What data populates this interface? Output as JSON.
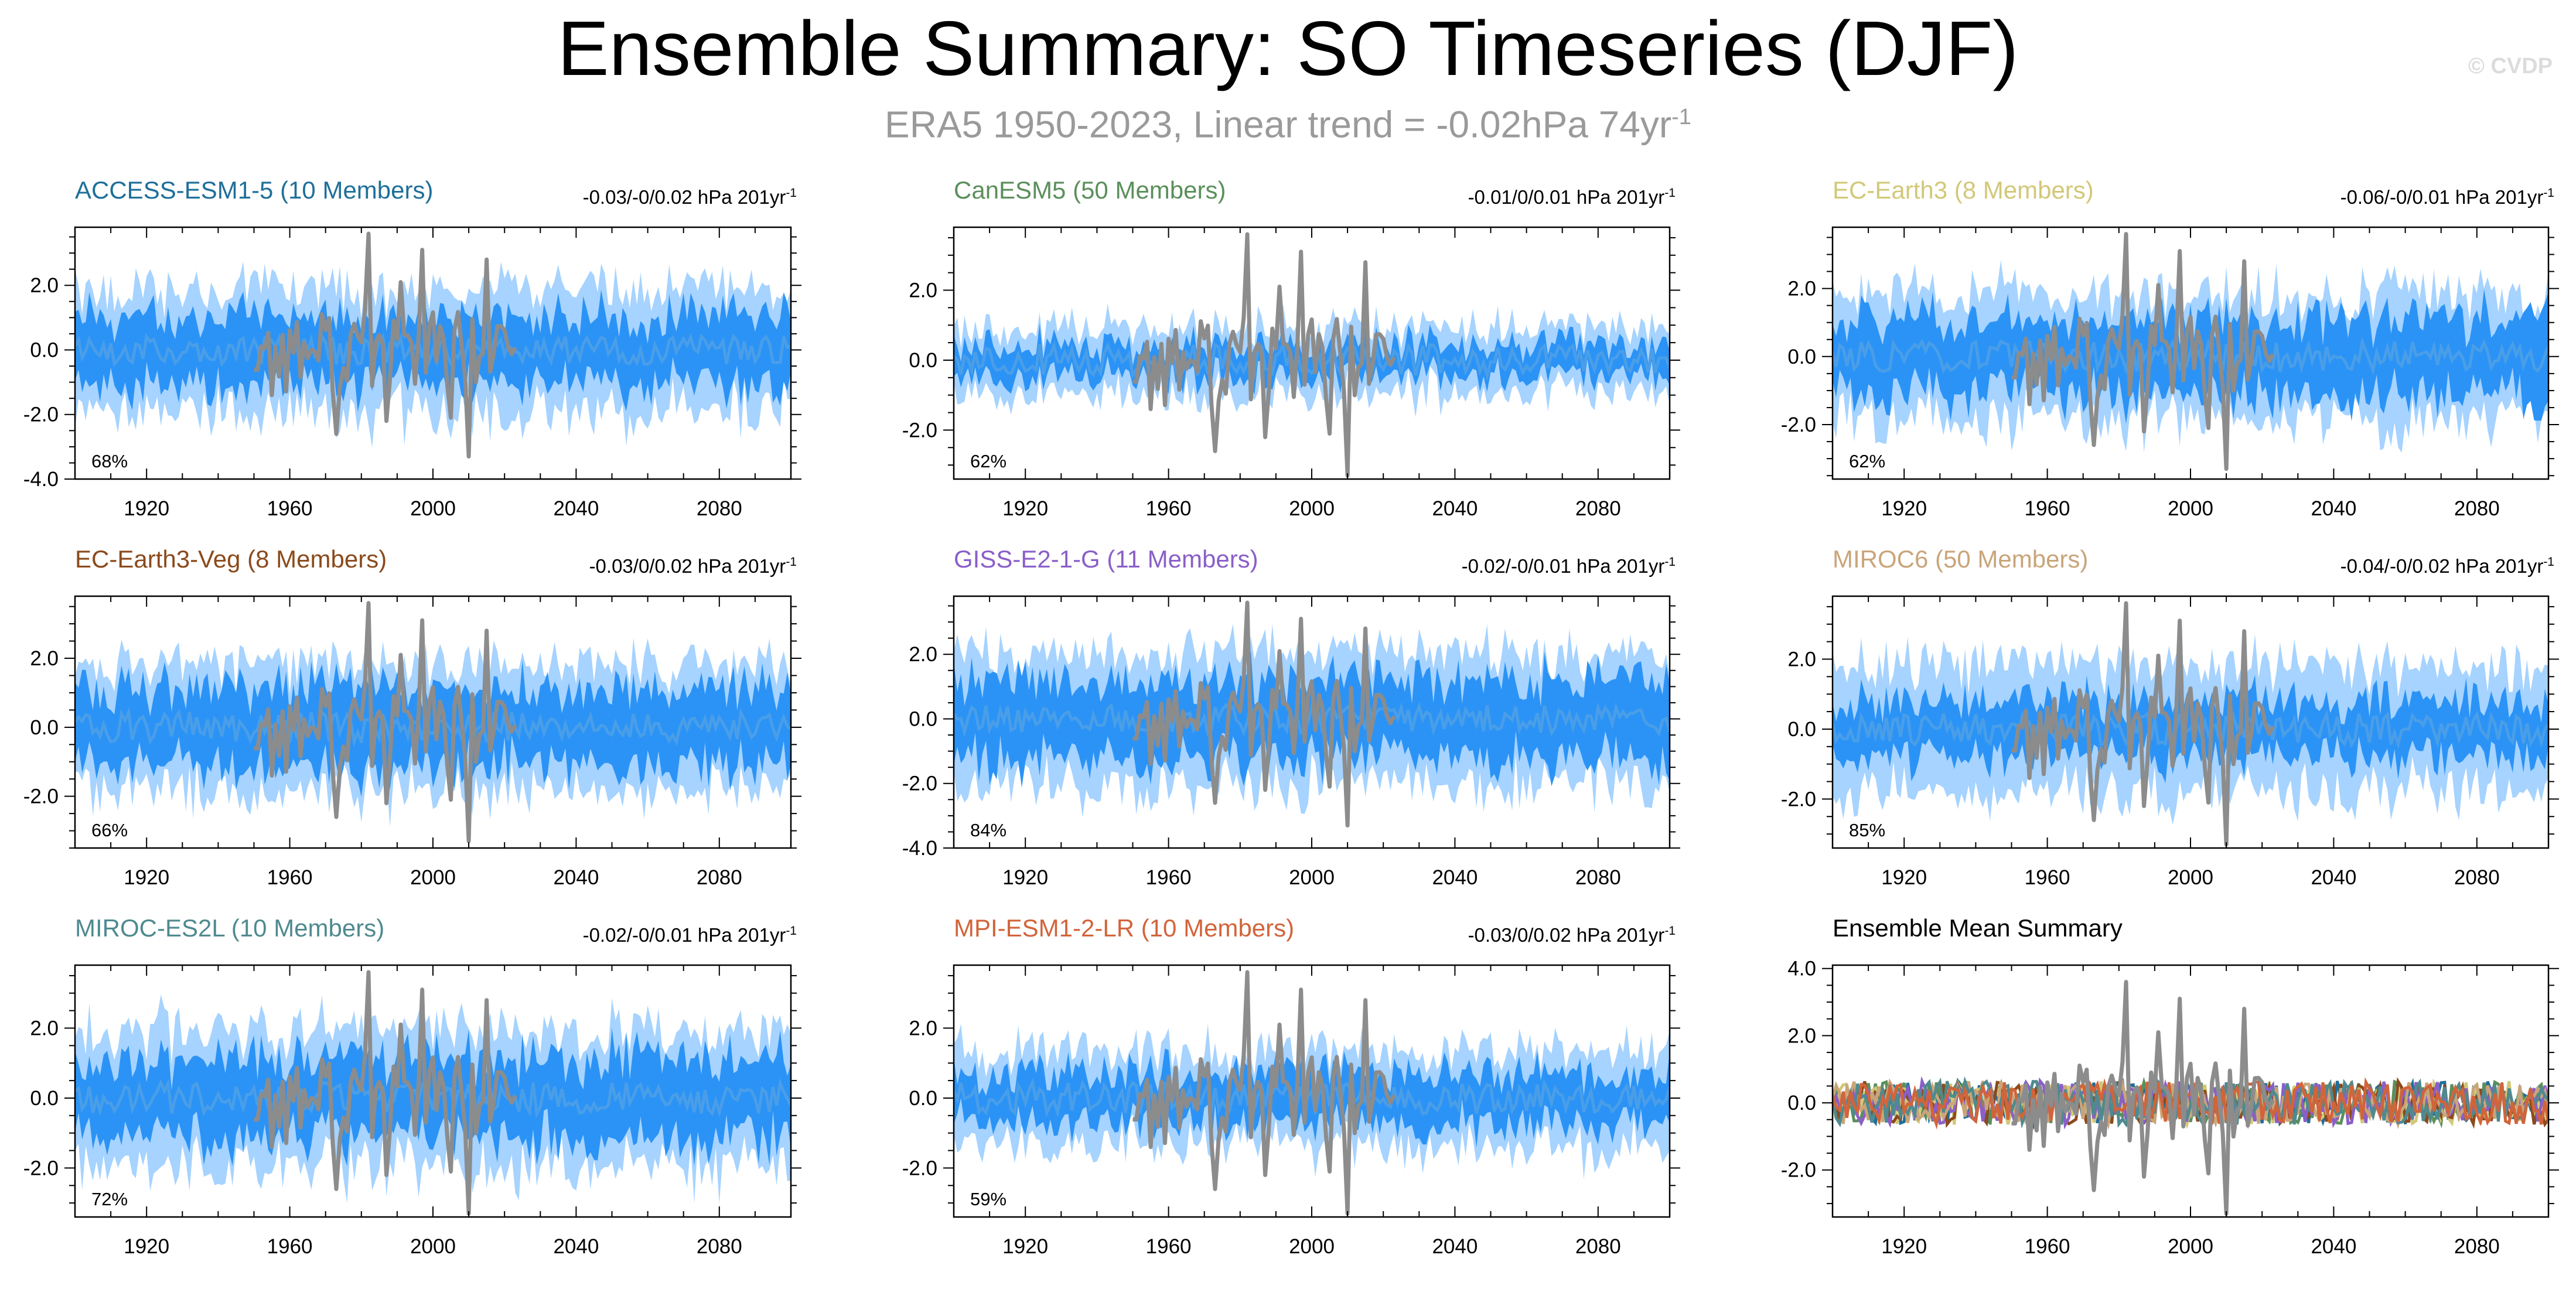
{
  "page": {
    "title": "Ensemble Summary: SO Timeseries (DJF)",
    "subtitle_main": "ERA5 1950-2023, Linear trend = -0.02hPa 74yr",
    "subtitle_sup": "-1",
    "copyright": "© CVDP"
  },
  "colors": {
    "spread_outer": "#a6d3ff",
    "spread_inner": "#2b93f6",
    "ensemble_mean": "#4a9ee8",
    "observations": "#8c8c8c"
  },
  "chart_data": [
    {
      "type": "area",
      "title": "ACCESS-ESM1-5 (10 Members)",
      "title_color": "#1f6f9a",
      "trend_label": "-0.03/-0/0.02 hPa 201yr",
      "trend_sup": "-1",
      "percent_label": "68%",
      "xlim": [
        1900,
        2100
      ],
      "x_ticks": [
        "1920",
        "1960",
        "2000",
        "2040",
        "2080"
      ],
      "ylim": [
        -4.0,
        3.8
      ],
      "y_ticks": [
        "2.0",
        "0.0",
        "-2.0",
        "-4.0"
      ],
      "y_tick_values": [
        2.0,
        0.0,
        -2.0,
        -4.0
      ],
      "x_range": [
        1900,
        2100
      ],
      "outer_amplitude": 2.2,
      "inner_amplitude": 1.3
    },
    {
      "type": "area",
      "title": "CanESM5 (50 Members)",
      "title_color": "#5b8f5b",
      "trend_label": "-0.01/0/0.01 hPa 201yr",
      "trend_sup": "-1",
      "percent_label": "62%",
      "xlim": [
        1900,
        2100
      ],
      "x_ticks": [
        "1920",
        "1960",
        "2000",
        "2040",
        "2080"
      ],
      "ylim": [
        -3.4,
        3.8
      ],
      "y_ticks": [
        "2.0",
        "0.0",
        "-2.0"
      ],
      "y_tick_values": [
        2.0,
        0.0,
        -2.0
      ],
      "x_range": [
        1900,
        2100
      ],
      "outer_amplitude": 1.1,
      "inner_amplitude": 0.55
    },
    {
      "type": "area",
      "title": "EC-Earth3 (8 Members)",
      "title_color": "#d2c878",
      "trend_label": "-0.06/-0/0.01 hPa 201yr",
      "trend_sup": "-1",
      "percent_label": "62%",
      "xlim": [
        1900,
        2100
      ],
      "x_ticks": [
        "1920",
        "1960",
        "2000",
        "2040",
        "2080"
      ],
      "ylim": [
        -3.6,
        3.8
      ],
      "y_ticks": [
        "2.0",
        "0.0",
        "-2.0"
      ],
      "y_tick_values": [
        2.0,
        0.0,
        -2.0
      ],
      "x_range": [
        1900,
        2100
      ],
      "outer_amplitude": 2.2,
      "inner_amplitude": 1.4
    },
    {
      "type": "area",
      "title": "EC-Earth3-Veg (8 Members)",
      "title_color": "#8b4a1c",
      "trend_label": "-0.03/0/0.02 hPa 201yr",
      "trend_sup": "-1",
      "percent_label": "66%",
      "xlim": [
        1900,
        2100
      ],
      "x_ticks": [
        "1920",
        "1960",
        "2000",
        "2040",
        "2080"
      ],
      "ylim": [
        -3.5,
        3.8
      ],
      "y_ticks": [
        "2.0",
        "0.0",
        "-2.0"
      ],
      "y_tick_values": [
        2.0,
        0.0,
        -2.0
      ],
      "x_range": [
        1900,
        2100
      ],
      "outer_amplitude": 2.1,
      "inner_amplitude": 1.4
    },
    {
      "type": "area",
      "title": "GISS-E2-1-G (11 Members)",
      "title_color": "#8a5fc8",
      "trend_label": "-0.02/-0/0.01 hPa 201yr",
      "trend_sup": "-1",
      "percent_label": "84%",
      "xlim": [
        1900,
        2100
      ],
      "x_ticks": [
        "1920",
        "1960",
        "2000",
        "2040",
        "2080"
      ],
      "ylim": [
        -4.0,
        3.8
      ],
      "y_ticks": [
        "2.0",
        "0.0",
        "-2.0",
        "-4.0"
      ],
      "y_tick_values": [
        2.0,
        0.0,
        -2.0,
        -4.0
      ],
      "x_range": [
        1900,
        2100
      ],
      "outer_amplitude": 2.4,
      "inner_amplitude": 1.5
    },
    {
      "type": "area",
      "title": "MIROC6 (50 Members)",
      "title_color": "#c9a57a",
      "trend_label": "-0.04/-0/0.02 hPa 201yr",
      "trend_sup": "-1",
      "percent_label": "85%",
      "xlim": [
        1900,
        2100
      ],
      "x_ticks": [
        "1920",
        "1960",
        "2000",
        "2040",
        "2080"
      ],
      "ylim": [
        -3.4,
        3.8
      ],
      "y_ticks": [
        "2.0",
        "0.0",
        "-2.0"
      ],
      "y_tick_values": [
        2.0,
        0.0,
        -2.0
      ],
      "x_range": [
        1900,
        2100
      ],
      "outer_amplitude": 2.1,
      "inner_amplitude": 1.0
    },
    {
      "type": "area",
      "title": "MIROC-ES2L (10 Members)",
      "title_color": "#4f8a8f",
      "trend_label": "-0.02/-0/0.01 hPa 201yr",
      "trend_sup": "-1",
      "percent_label": "72%",
      "xlim": [
        1900,
        2100
      ],
      "x_ticks": [
        "1920",
        "1960",
        "2000",
        "2040",
        "2080"
      ],
      "ylim": [
        -3.4,
        3.8
      ],
      "y_ticks": [
        "2.0",
        "0.0",
        "-2.0"
      ],
      "y_tick_values": [
        2.0,
        0.0,
        -2.0
      ],
      "x_range": [
        1900,
        2100
      ],
      "outer_amplitude": 2.3,
      "inner_amplitude": 1.4
    },
    {
      "type": "area",
      "title": "MPI-ESM1-2-LR (10 Members)",
      "title_color": "#d2643a",
      "trend_label": "-0.03/0/0.02 hPa 201yr",
      "trend_sup": "-1",
      "percent_label": "59%",
      "xlim": [
        1900,
        2100
      ],
      "x_ticks": [
        "1920",
        "1960",
        "2000",
        "2040",
        "2080"
      ],
      "ylim": [
        -3.4,
        3.8
      ],
      "y_ticks": [
        "2.0",
        "0.0",
        "-2.0"
      ],
      "y_tick_values": [
        2.0,
        0.0,
        -2.0
      ],
      "x_range": [
        1900,
        2100
      ],
      "outer_amplitude": 1.6,
      "inner_amplitude": 0.9
    },
    {
      "type": "line",
      "title": "Ensemble Mean Summary",
      "title_color": "#000000",
      "trend_label": "",
      "trend_sup": "",
      "percent_label": "",
      "xlim": [
        1900,
        2100
      ],
      "x_ticks": [
        "1920",
        "1960",
        "2000",
        "2040",
        "2080"
      ],
      "ylim": [
        -3.4,
        4.1
      ],
      "y_ticks": [
        "4.0",
        "2.0",
        "0.0",
        "-2.0"
      ],
      "y_tick_values": [
        4.0,
        2.0,
        0.0,
        -2.0
      ],
      "x_range": [
        1900,
        2100
      ],
      "series_colors": [
        "#1f6f9a",
        "#5b8f5b",
        "#d2c878",
        "#8b4a1c",
        "#8a5fc8",
        "#c9a57a",
        "#4f8a8f",
        "#d2643a"
      ]
    }
  ]
}
